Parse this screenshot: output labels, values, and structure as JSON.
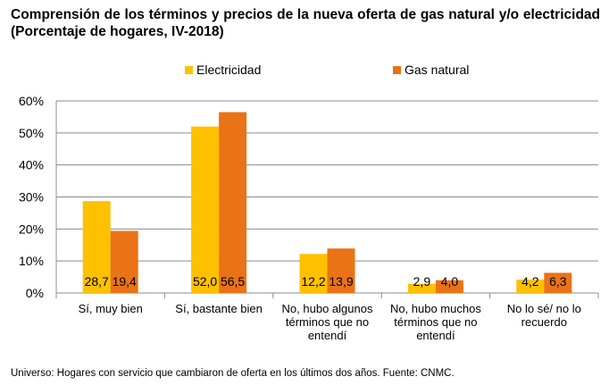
{
  "title": "Comprensión de los términos y precios de la nueva oferta de gas natural y/o electricidad (Porcentaje de hogares, IV-2018)",
  "footnote": "Universo: Hogares con servicio que cambiaron de oferta en los últimos dos años. Fuente: CNMC.",
  "chart_data": {
    "type": "bar",
    "categories": [
      [
        "Sí, muy bien"
      ],
      [
        "Sí, bastante bien"
      ],
      [
        "No, hubo algunos",
        "términos que no",
        "entendí"
      ],
      [
        "No, hubo muchos",
        "términos que no",
        "entendí"
      ],
      [
        "No lo sé/ no lo",
        "recuerdo"
      ]
    ],
    "series": [
      {
        "name": "Electricidad",
        "color": "#FFC000",
        "values": [
          28.7,
          52.0,
          12.2,
          2.9,
          4.2
        ],
        "labels": [
          "28,7",
          "52,0",
          "12,2",
          "2,9",
          "4,2"
        ]
      },
      {
        "name": "Gas natural",
        "color": "#E97316",
        "values": [
          19.4,
          56.5,
          13.9,
          4.0,
          6.3
        ],
        "labels": [
          "19,4",
          "56,5",
          "13,9",
          "4,0",
          "6,3"
        ]
      }
    ],
    "ylim": [
      0,
      60
    ],
    "yticks": [
      0,
      10,
      20,
      30,
      40,
      50,
      60
    ],
    "ytick_labels": [
      "0%",
      "10%",
      "20%",
      "30%",
      "40%",
      "50%",
      "60%"
    ],
    "grid": true,
    "legend_position": "top"
  }
}
